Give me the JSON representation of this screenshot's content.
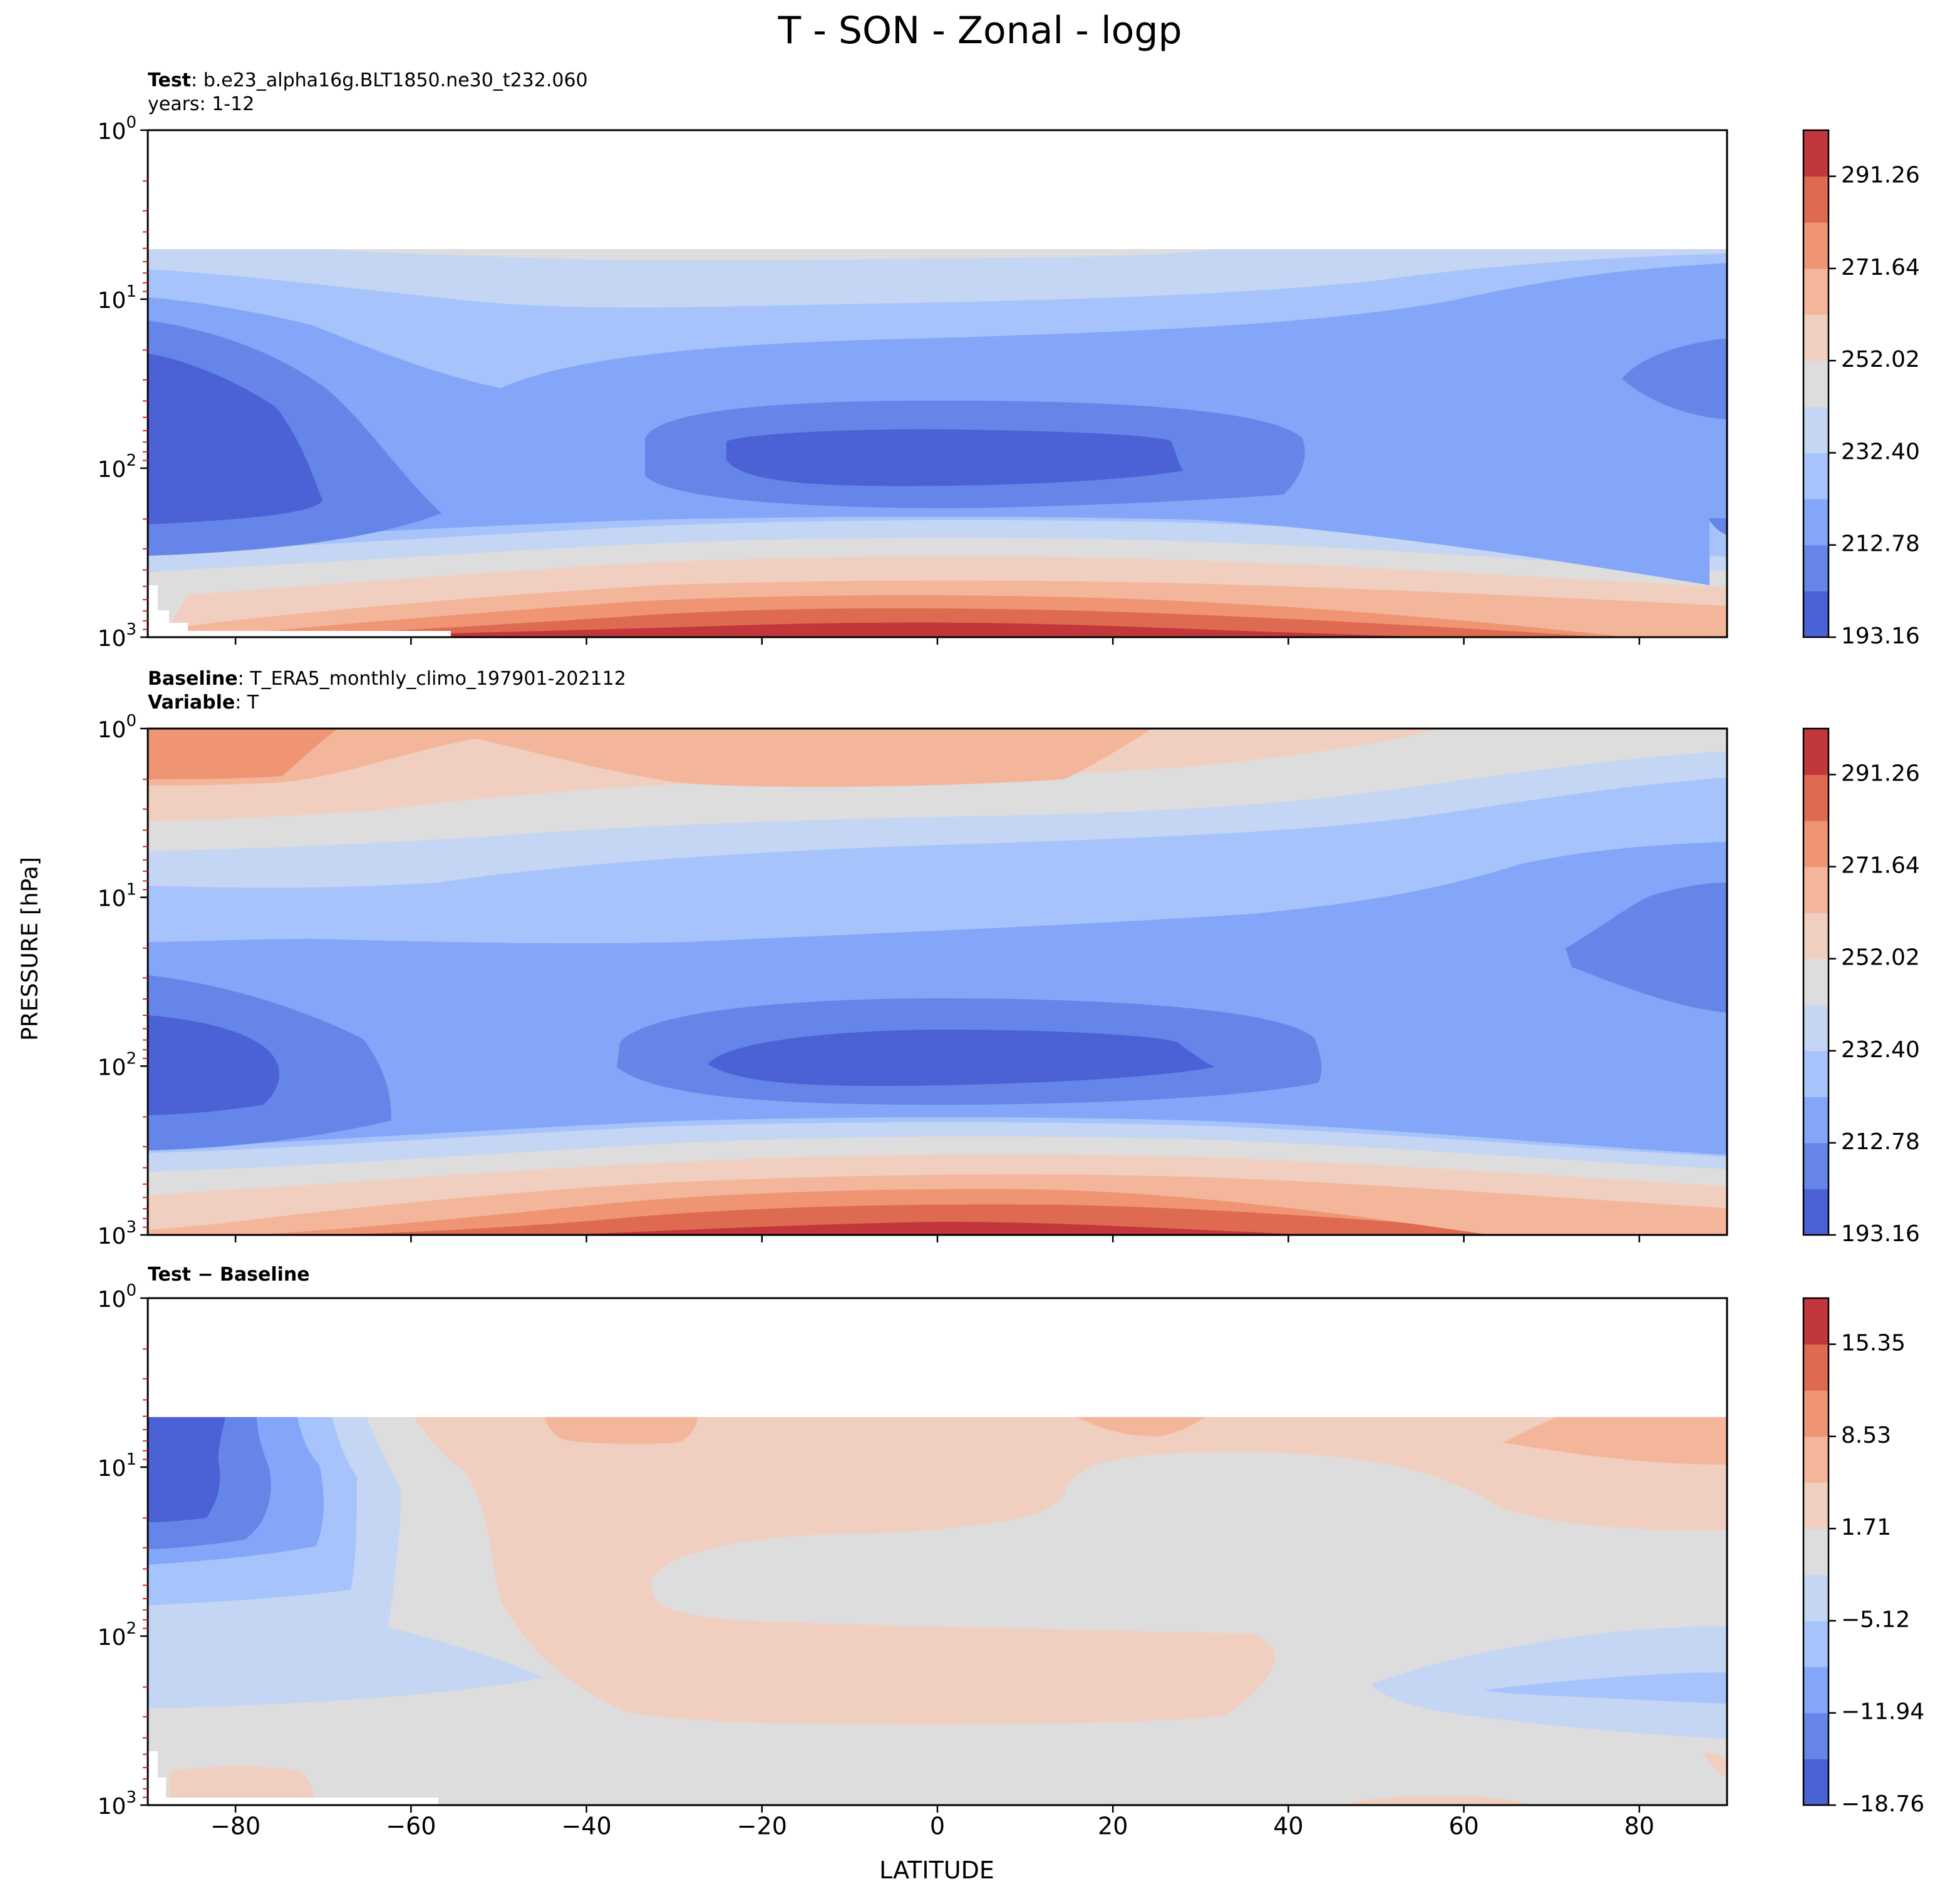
{
  "figure": {
    "title": "T - SON - Zonal - logp",
    "ylabel": "PRESSURE [hPa]",
    "xlabel": "LATITUDE"
  },
  "panels": {
    "test": {
      "key": "Test",
      "sep": ": ",
      "case": "b.e23_alpha16g.BLT1850.ne30_t232.060",
      "years": "years: 1-12"
    },
    "baseline": {
      "key": "Baseline",
      "sep": ": ",
      "case": "T_ERA5_monthly_climo_197901-202112",
      "var_key": "Variable",
      "var_sep": ": ",
      "var": "T"
    },
    "diff": {
      "key": "Test − Baseline"
    }
  },
  "colors": {
    "temp_levels": [
      "#4a62d6",
      "#6585e8",
      "#83a6f8",
      "#a7c3fc",
      "#c4d6f3",
      "#dddddd",
      "#f1cfc0",
      "#f4b69a",
      "#ef9574",
      "#dd6a51",
      "#c2373a"
    ],
    "diff_levels": [
      "#4a62d6",
      "#6585e8",
      "#83a6f8",
      "#a7c3fc",
      "#c4d6f3",
      "#dddddd",
      "#f1cfc0",
      "#f4b69a",
      "#ef9574",
      "#dd6a51",
      "#c2373a"
    ],
    "missing_tick": "#d62728"
  },
  "chart_data": [
    {
      "type": "heatmap",
      "subtype": "filled-contour",
      "panel": "test",
      "xlim": [
        -90,
        90
      ],
      "ylim_hpa": [
        1000,
        1
      ],
      "yscale": "log",
      "x_ticks": [
        -80,
        -60,
        -40,
        -20,
        0,
        20,
        40,
        60,
        80
      ],
      "y_ticks": [
        "10^0",
        "10^1",
        "10^2",
        "10^3"
      ],
      "data_top_hpa": 5,
      "colorbar": {
        "min": 193.16,
        "max": 301.07,
        "ticks": [
          "193.16",
          "212.78",
          "232.40",
          "252.02",
          "271.64",
          "291.26"
        ]
      },
      "features": [
        {
          "name": "tropical tropopause minimum",
          "lat_range": [
            -24,
            28
          ],
          "p_hpa": 90,
          "value_range": [
            193.16,
            202.97
          ]
        },
        {
          "name": "antarctic stratosphere minimum",
          "lat_range": [
            -90,
            -70
          ],
          "p_hpa": [
            25,
            180
          ],
          "value_range": [
            193.16,
            202.97
          ]
        },
        {
          "name": "arctic stratosphere low",
          "lat_range": [
            78,
            90
          ],
          "p_hpa": [
            18,
            40
          ],
          "value_range": [
            202.97,
            212.78
          ]
        },
        {
          "name": "tropical surface maximum",
          "lat_range": [
            -20,
            30
          ],
          "p_hpa": 1000,
          "value_range": [
            291.26,
            301.07
          ]
        }
      ]
    },
    {
      "type": "heatmap",
      "subtype": "filled-contour",
      "panel": "baseline",
      "xlim": [
        -90,
        90
      ],
      "ylim_hpa": [
        1000,
        1
      ],
      "yscale": "log",
      "x_ticks": [
        -80,
        -60,
        -40,
        -20,
        0,
        20,
        40,
        60,
        80
      ],
      "y_ticks": [
        "10^0",
        "10^1",
        "10^2",
        "10^3"
      ],
      "data_top_hpa": 1,
      "colorbar": {
        "min": 193.16,
        "max": 301.07,
        "ticks": [
          "193.16",
          "212.78",
          "232.40",
          "252.02",
          "271.64",
          "291.26"
        ]
      },
      "features": [
        {
          "name": "tropical tropopause minimum",
          "lat_range": [
            -26,
            32
          ],
          "p_hpa": 90,
          "value_range": [
            193.16,
            202.97
          ]
        },
        {
          "name": "antarctic stratosphere minimum",
          "lat_range": [
            -90,
            -76
          ],
          "p_hpa": [
            55,
            150
          ],
          "value_range": [
            193.16,
            202.97
          ]
        },
        {
          "name": "arctic stratosphere low",
          "lat_range": [
            72,
            90
          ],
          "p_hpa": [
            8,
            40
          ],
          "value_range": [
            202.97,
            212.78
          ]
        },
        {
          "name": "upper stratosphere warm",
          "lat_range": [
            -90,
            -70
          ],
          "p_hpa": 1.2,
          "value_range": [
            261.83,
            271.64
          ]
        },
        {
          "name": "tropical surface maximum",
          "lat_range": [
            -20,
            35
          ],
          "p_hpa": 1000,
          "value_range": [
            291.26,
            301.07
          ]
        }
      ]
    },
    {
      "type": "heatmap",
      "subtype": "filled-contour",
      "panel": "diff",
      "xlim": [
        -90,
        90
      ],
      "ylim_hpa": [
        1000,
        1
      ],
      "yscale": "log",
      "x_ticks": [
        -80,
        -60,
        -40,
        -20,
        0,
        20,
        40,
        60,
        80
      ],
      "y_ticks": [
        "10^0",
        "10^1",
        "10^2",
        "10^3"
      ],
      "data_top_hpa": 5,
      "colorbar": {
        "min": -18.76,
        "max": 18.76,
        "ticks": [
          "−18.76",
          "−11.94",
          "−5.12",
          "1.71",
          "8.53",
          "15.35"
        ]
      },
      "features": [
        {
          "name": "antarctic cold bias",
          "lat_range": [
            -90,
            -80
          ],
          "p_hpa": [
            5,
            25
          ],
          "value_range": [
            -18.76,
            -15.35
          ]
        },
        {
          "name": "high-latitude SH cold gradient",
          "lat_range": [
            -90,
            -62
          ],
          "p_hpa": [
            5,
            65
          ],
          "value_range": [
            -15.35,
            -1.71
          ]
        },
        {
          "name": "widespread small warm bias",
          "lat_range": [
            -60,
            60
          ],
          "p_hpa": [
            5,
            300
          ],
          "value_range": [
            1.71,
            5.12
          ]
        },
        {
          "name": "upper-level warm patches",
          "lat_range": [
            -45,
            -28
          ],
          "p_hpa": [
            5,
            7
          ],
          "value_range": [
            5.12,
            8.53
          ]
        },
        {
          "name": "arctic upper warm bias",
          "lat_range": [
            65,
            90
          ],
          "p_hpa": [
            5,
            12
          ],
          "value_range": [
            5.12,
            8.53
          ]
        },
        {
          "name": "arctic lower cold bias",
          "lat_range": [
            50,
            90
          ],
          "p_hpa": [
            150,
            300
          ],
          "value_range": [
            -8.53,
            -1.71
          ]
        }
      ]
    }
  ]
}
